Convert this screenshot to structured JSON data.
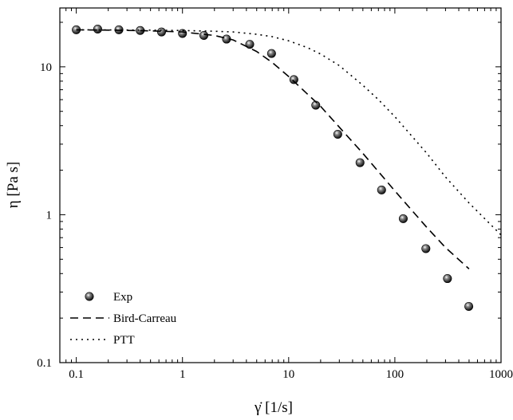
{
  "chart_data": {
    "type": "line",
    "title": "",
    "xlabel": "γ̇ [1/s]",
    "ylabel": "η [Pa s]",
    "xscale": "log",
    "yscale": "log",
    "xlim": [
      0.07,
      1000
    ],
    "ylim": [
      0.1,
      25
    ],
    "x_ticks": [
      "0.1",
      "1",
      "10",
      "100",
      "1000"
    ],
    "y_ticks": [
      "0.1",
      "1",
      "10"
    ],
    "legend_position": "bottom-left",
    "grid": false,
    "series": [
      {
        "name": "Exp",
        "style": "markers",
        "x": [
          0.1,
          0.159,
          0.252,
          0.4,
          0.635,
          1.0,
          1.59,
          2.6,
          4.3,
          6.9,
          11.2,
          18.0,
          29.0,
          47.0,
          75.0,
          120.0,
          196.0,
          313.0,
          497.0
        ],
        "y": [
          17.8,
          18.0,
          17.8,
          17.6,
          17.2,
          16.8,
          16.3,
          15.4,
          14.2,
          12.3,
          8.2,
          5.5,
          3.5,
          2.25,
          1.47,
          0.94,
          0.59,
          0.37,
          0.24
        ]
      },
      {
        "name": "Bird-Carreau",
        "style": "dashed",
        "x": [
          0.1,
          0.2,
          0.5,
          1.0,
          2.0,
          3.0,
          5.0,
          7.0,
          10.0,
          20.0,
          50.0,
          100.0,
          200.0,
          300.0,
          500.0
        ],
        "y": [
          17.8,
          17.7,
          17.5,
          17.2,
          16.3,
          15.2,
          12.7,
          10.7,
          8.6,
          5.4,
          2.6,
          1.45,
          0.82,
          0.6,
          0.43
        ]
      },
      {
        "name": "PTT",
        "style": "dotted",
        "x": [
          0.1,
          0.5,
          1.0,
          2.0,
          3.0,
          5.0,
          7.0,
          10.0,
          15.0,
          20.0,
          30.0,
          50.0,
          70.0,
          100.0,
          150.0,
          200.0,
          300.0,
          500.0,
          1000.0
        ],
        "y": [
          17.8,
          17.7,
          17.6,
          17.4,
          17.2,
          16.6,
          16.0,
          15.0,
          13.5,
          12.2,
          10.2,
          7.5,
          6.0,
          4.6,
          3.3,
          2.6,
          1.8,
          1.2,
          0.73
        ]
      }
    ]
  }
}
